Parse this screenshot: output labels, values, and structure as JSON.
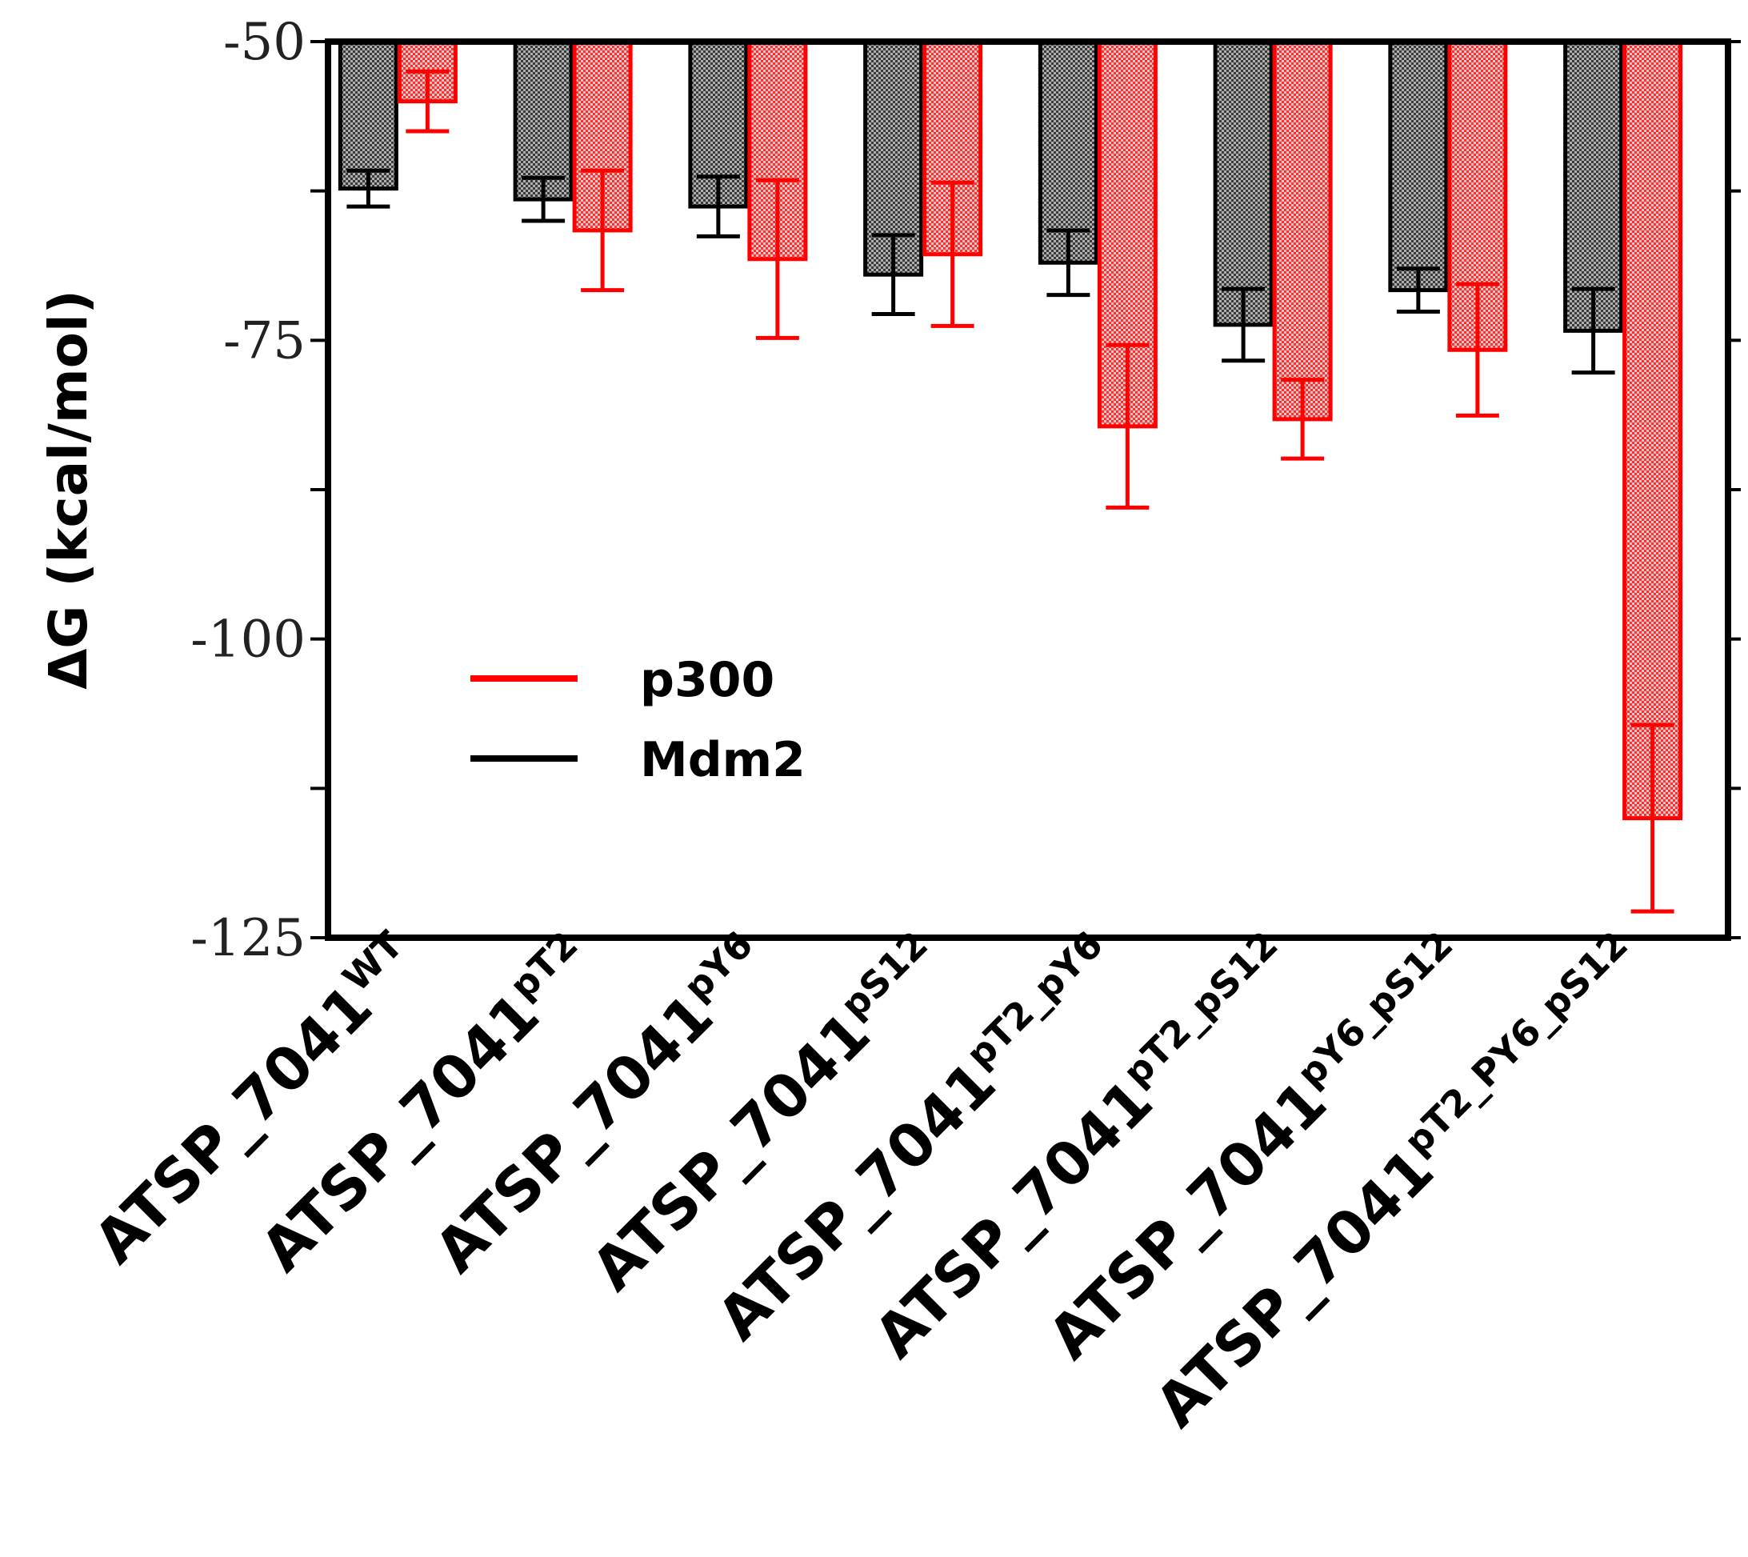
{
  "chart_data": {
    "type": "bar",
    "title": "",
    "xlabel": "",
    "ylabel": "ΔG (kcal/mol)",
    "ylim": [
      -50,
      -125
    ],
    "yticks": [
      -50,
      -62.5,
      -75,
      -87.5,
      -100,
      -112.5,
      -125
    ],
    "ytick_labels": [
      "-50",
      "",
      "-75",
      "",
      "-100",
      "",
      "-125"
    ],
    "legend_position": "center-left",
    "categories": [
      {
        "base": "ATSP_7041",
        "sup": "WT"
      },
      {
        "base": "ATSP_7041",
        "sup": "pT2"
      },
      {
        "base": "ATSP_7041",
        "sup": "pY6"
      },
      {
        "base": "ATSP_7041",
        "sup": "pS12"
      },
      {
        "base": "ATSP_7041",
        "sup": "pT2_pY6"
      },
      {
        "base": "ATSP_7041",
        "sup": "pT2_pS12"
      },
      {
        "base": "ATSP_7041",
        "sup": "pY6_pS12"
      },
      {
        "base": "ATSP_7041",
        "sup": "pT2_PY6_pS12"
      }
    ],
    "series": [
      {
        "name": "Mdm2",
        "color": "#000000",
        "fill": "#8a8a8a",
        "values": [
          -62.3,
          -63.2,
          -63.8,
          -69.5,
          -68.5,
          -73.7,
          -70.8,
          -74.2
        ],
        "errors": [
          1.5,
          1.8,
          2.5,
          3.3,
          2.7,
          3.0,
          1.8,
          3.5
        ]
      },
      {
        "name": "p300",
        "color": "#ff0000",
        "fill": "#ff6b6b",
        "values": [
          -55.0,
          -65.8,
          -68.2,
          -67.8,
          -82.2,
          -81.6,
          -75.8,
          -115.0
        ],
        "errors": [
          2.5,
          5.0,
          6.6,
          6.0,
          6.8,
          3.3,
          5.5,
          7.8
        ]
      }
    ]
  }
}
